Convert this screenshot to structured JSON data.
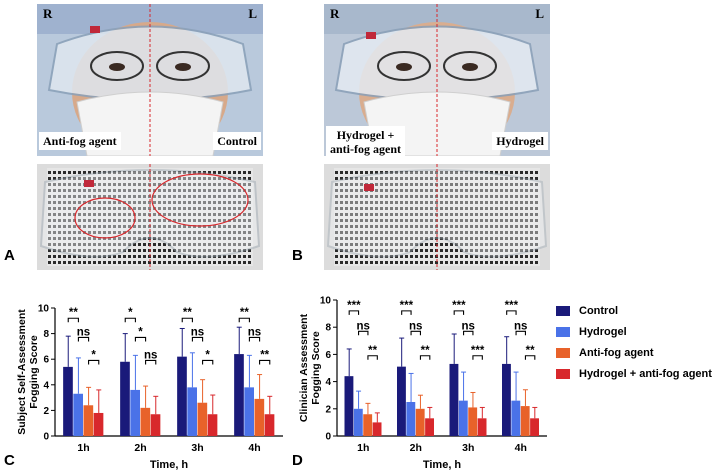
{
  "figure": {
    "panel_a_letter": "A",
    "panel_b_letter": "B",
    "panel_c_letter": "C",
    "panel_d_letter": "D"
  },
  "photos": {
    "left": {
      "side_left": "R",
      "side_right": "L",
      "label_left": "Anti-fog agent",
      "label_right": "Control"
    },
    "right": {
      "side_left": "R",
      "side_right": "L",
      "label_left": "Hydrogel +\nanti-fog agent",
      "label_right": "Hydrogel"
    }
  },
  "legend": {
    "items": [
      {
        "label": "Control",
        "color": "#1a1a7a"
      },
      {
        "label": "Hydrogel",
        "color": "#4a72e8"
      },
      {
        "label": "Anti-fog agent",
        "color": "#e8622a"
      },
      {
        "label": "Hydrogel + anti-fog agent",
        "color": "#d8282c"
      }
    ]
  },
  "chart_data": [
    {
      "type": "bar",
      "panel": "C",
      "title": "",
      "xlabel": "Time, h",
      "ylabel": "Subject Self-Assessment Fogging Score",
      "ylim": [
        0,
        10
      ],
      "yticks": [
        "0",
        "2",
        "4",
        "6",
        "8",
        "10"
      ],
      "categories": [
        "1h",
        "2h",
        "3h",
        "4h"
      ],
      "series": [
        {
          "name": "Control",
          "values": [
            5.4,
            5.8,
            6.2,
            6.4
          ],
          "errors": [
            2.4,
            2.2,
            2.2,
            2.1
          ]
        },
        {
          "name": "Hydrogel",
          "values": [
            3.3,
            3.6,
            3.8,
            3.8
          ],
          "errors": [
            2.8,
            2.7,
            2.7,
            2.5
          ]
        },
        {
          "name": "Anti-fog agent",
          "values": [
            2.4,
            2.2,
            2.6,
            2.9
          ],
          "errors": [
            1.4,
            1.7,
            1.8,
            1.9
          ]
        },
        {
          "name": "Hydrogel + anti-fog agent",
          "values": [
            1.8,
            1.7,
            1.7,
            1.7
          ],
          "errors": [
            1.8,
            1.4,
            1.5,
            1.4
          ]
        }
      ],
      "significance": [
        [
          {
            "label": "**"
          },
          {
            "label": "ns"
          },
          {
            "label": "*"
          }
        ],
        [
          {
            "label": "*"
          },
          {
            "label": "*"
          },
          {
            "label": "ns"
          }
        ],
        [
          {
            "label": "**"
          },
          {
            "label": "ns"
          },
          {
            "label": "*"
          }
        ],
        [
          {
            "label": "**"
          },
          {
            "label": "ns"
          },
          {
            "label": "**"
          }
        ]
      ]
    },
    {
      "type": "bar",
      "panel": "D",
      "title": "",
      "xlabel": "Time, h",
      "ylabel": "Clinician Assessment Fogging Score",
      "ylim": [
        0,
        10
      ],
      "yticks": [
        "0",
        "2",
        "4",
        "6",
        "8",
        "10"
      ],
      "categories": [
        "1h",
        "2h",
        "3h",
        "4h"
      ],
      "series": [
        {
          "name": "Control",
          "values": [
            4.4,
            5.1,
            5.3,
            5.3
          ],
          "errors": [
            2.0,
            2.1,
            2.2,
            2.0
          ]
        },
        {
          "name": "Hydrogel",
          "values": [
            2.0,
            2.5,
            2.6,
            2.6
          ],
          "errors": [
            1.3,
            2.1,
            2.1,
            2.1
          ]
        },
        {
          "name": "Anti-fog agent",
          "values": [
            1.6,
            2.0,
            2.1,
            2.2
          ],
          "errors": [
            0.8,
            1.0,
            1.1,
            1.2
          ]
        },
        {
          "name": "Hydrogel + anti-fog agent",
          "values": [
            1.0,
            1.3,
            1.3,
            1.3
          ],
          "errors": [
            0.7,
            0.8,
            0.8,
            0.8
          ]
        }
      ],
      "significance": [
        [
          {
            "label": "***"
          },
          {
            "label": "ns"
          },
          {
            "label": "**"
          }
        ],
        [
          {
            "label": "***"
          },
          {
            "label": "ns"
          },
          {
            "label": "**"
          }
        ],
        [
          {
            "label": "***"
          },
          {
            "label": "ns"
          },
          {
            "label": "***"
          }
        ],
        [
          {
            "label": "***"
          },
          {
            "label": "ns"
          },
          {
            "label": "**"
          }
        ]
      ]
    }
  ]
}
